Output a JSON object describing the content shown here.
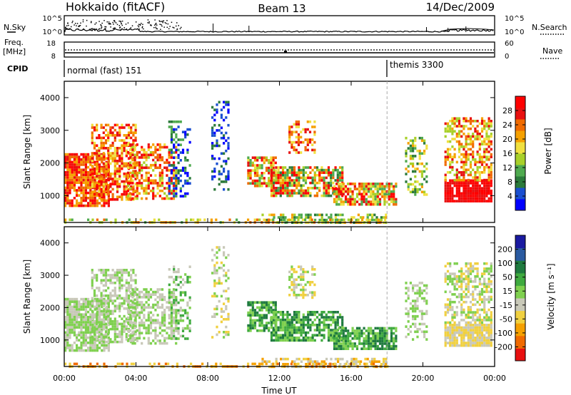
{
  "header": {
    "station": "Hokkaido (fitACF)",
    "beam": "Beam 13",
    "date": "14/Dec/2009"
  },
  "top_panels": {
    "nsky_label": "N.Sky",
    "nsky_ticks": [
      "10^5",
      "10^0"
    ],
    "nsearch_label": "N.Search",
    "nsearch_ticks": [
      "10^5",
      "10^0"
    ],
    "freq_label_1": "Freq.",
    "freq_label_2": "[MHz]",
    "freq_ticks": [
      "18",
      "8"
    ],
    "nave_label": "Nave",
    "nave_ticks": [
      "60",
      "0"
    ],
    "cpid_label": "CPID",
    "cpid_modes": [
      {
        "name": "normal (fast) 151",
        "start_hour": 0
      },
      {
        "name": "themis 3300",
        "start_hour": 18
      }
    ]
  },
  "chart_data": [
    {
      "type": "heatmap",
      "title": "",
      "xlabel": "Time UT",
      "ylabel": "Slant Range [km]",
      "xlim": [
        0,
        24
      ],
      "ylim": [
        180,
        4500
      ],
      "x_ticks": [
        "00:00",
        "04:00",
        "08:00",
        "12:00",
        "16:00",
        "20:00",
        "00:00"
      ],
      "y_ticks": [
        1000,
        2000,
        3000,
        4000
      ],
      "colorbar": {
        "label": "Power [dB]",
        "ticks": [
          "4",
          "8",
          "12",
          "16",
          "20",
          "24",
          "28"
        ],
        "colors": [
          "#0000ff",
          "#1a4fd0",
          "#2b7a3a",
          "#4faa4f",
          "#a8d02a",
          "#f0e040",
          "#f5a000",
          "#f06a00",
          "#e81010",
          "#ff0000"
        ]
      },
      "marker_hour": 18
    },
    {
      "type": "heatmap",
      "title": "",
      "xlabel": "Time UT",
      "ylabel": "Slant Range [km]",
      "xlim": [
        0,
        24
      ],
      "ylim": [
        180,
        4500
      ],
      "x_ticks": [
        "00:00",
        "04:00",
        "08:00",
        "12:00",
        "16:00",
        "20:00",
        "00:00"
      ],
      "y_ticks": [
        1000,
        2000,
        3000,
        4000
      ],
      "colorbar": {
        "label": "Velocity [m s⁻¹]",
        "ticks": [
          "200",
          "100",
          "50",
          "15",
          "-15",
          "-50",
          "-100",
          "-200"
        ],
        "colors": [
          "#1a1aa0",
          "#2a5aa0",
          "#1f7a3f",
          "#3faa3f",
          "#7fd04f",
          "#c8c8b8",
          "#f0d040",
          "#f5a000",
          "#f06a00",
          "#e81010"
        ]
      },
      "marker_hour": 18
    }
  ]
}
